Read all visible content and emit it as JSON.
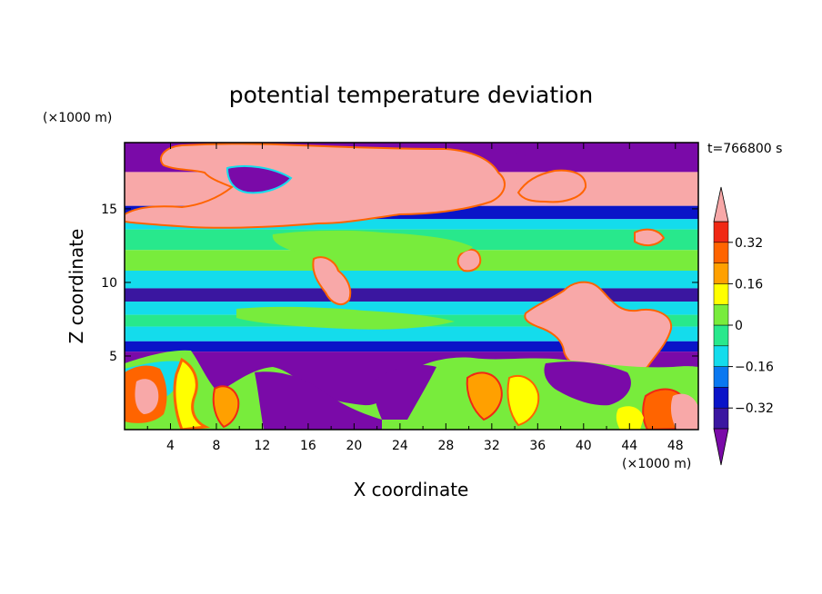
{
  "chart_data": {
    "type": "heatmap",
    "title": "potential temperature deviation",
    "xlabel": "X coordinate",
    "ylabel": "Z coordinate",
    "x_unit": "(×1000 m)",
    "y_unit": "(×1000 m)",
    "time_label": "t=766800 s",
    "xlim": [
      0,
      50
    ],
    "ylim": [
      0,
      19.5
    ],
    "x_ticks": [
      4,
      8,
      12,
      16,
      20,
      24,
      28,
      32,
      36,
      40,
      44,
      48
    ],
    "y_ticks": [
      5,
      10,
      15
    ],
    "colorbar": {
      "levels": [
        -0.4,
        -0.32,
        -0.24,
        -0.16,
        -0.08,
        0,
        0.08,
        0.16,
        0.24,
        0.32,
        0.4
      ],
      "tick_labels": [
        "0.32",
        "0.16",
        "0",
        "−0.16",
        "−0.32"
      ],
      "tick_values": [
        0.32,
        0.16,
        0,
        -0.16,
        -0.32
      ],
      "colors": [
        "#7a0aa8",
        "#3a16a0",
        "#0a14c8",
        "#0a78f0",
        "#14dcec",
        "#28e88c",
        "#78ec3c",
        "#ffff00",
        "#ffa000",
        "#ff6400",
        "#f02814",
        "#f8a8a8"
      ],
      "extend": "both"
    },
    "bands": [
      {
        "z_range": [
          17.5,
          19.5
        ],
        "value": -0.45
      },
      {
        "z_range": [
          15.2,
          17.5
        ],
        "value": 0.45
      },
      {
        "z_range": [
          14.3,
          15.2
        ],
        "value": -0.3
      },
      {
        "z_range": [
          13.6,
          14.3
        ],
        "value": -0.14
      },
      {
        "z_range": [
          12.2,
          13.6
        ],
        "value": -0.05
      },
      {
        "z_range": [
          10.8,
          12.2
        ],
        "value": 0.02
      },
      {
        "z_range": [
          9.6,
          10.8
        ],
        "value": -0.15
      },
      {
        "z_range": [
          8.7,
          9.6
        ],
        "value": -0.35
      },
      {
        "z_range": [
          7.8,
          8.7
        ],
        "value": -0.15
      },
      {
        "z_range": [
          7.0,
          7.8
        ],
        "value": -0.05
      },
      {
        "z_range": [
          6.0,
          7.0
        ],
        "value": -0.12
      },
      {
        "z_range": [
          5.3,
          6.0
        ],
        "value": -0.25
      },
      {
        "z_range": [
          0,
          5.3
        ],
        "value": -0.45
      }
    ]
  }
}
